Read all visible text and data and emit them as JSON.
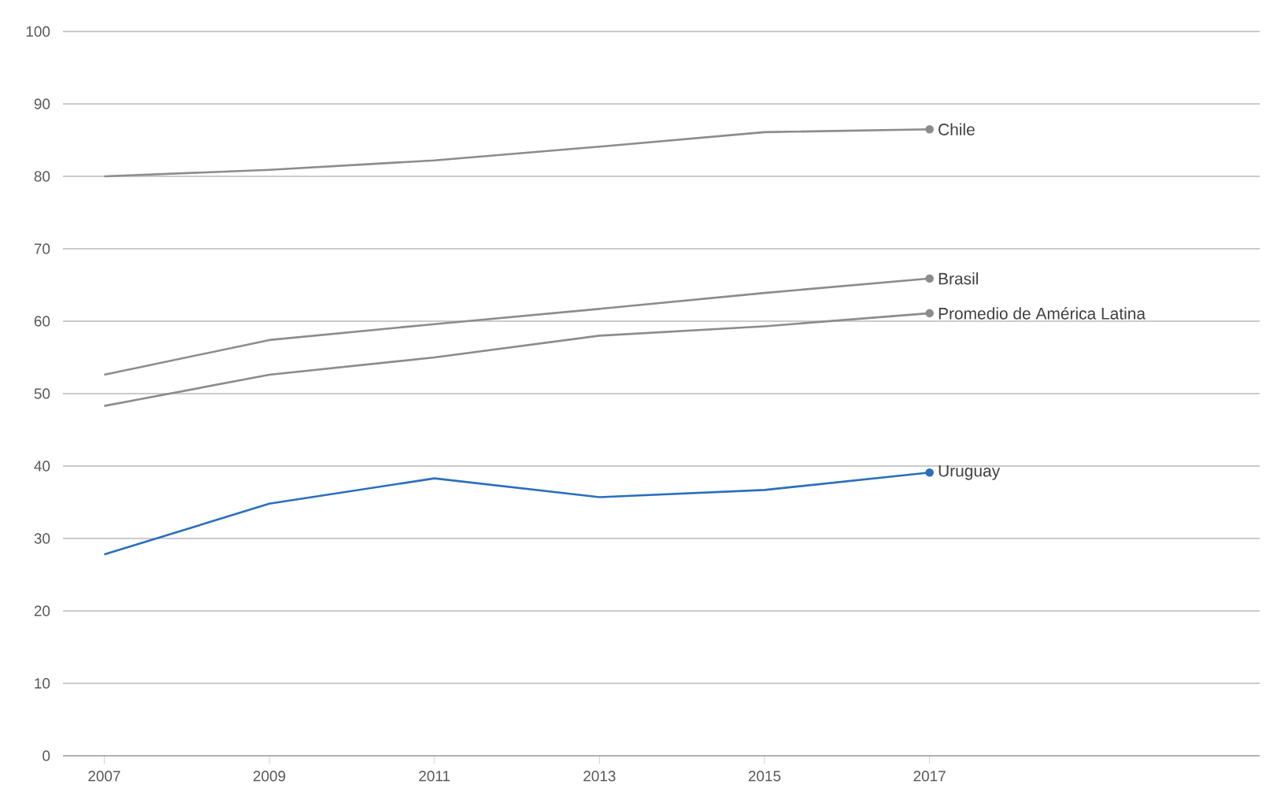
{
  "chart_data": {
    "type": "line",
    "x": [
      2007,
      2009,
      2011,
      2013,
      2015,
      2017
    ],
    "series": [
      {
        "name": "Chile",
        "color": "#8c8c8c",
        "values": [
          80.0,
          80.9,
          82.2,
          84.1,
          86.1,
          86.5
        ]
      },
      {
        "name": "Brasil",
        "color": "#8c8c8c",
        "values": [
          52.6,
          57.4,
          59.6,
          61.7,
          63.9,
          65.9
        ]
      },
      {
        "name": "Promedio de América Latina",
        "color": "#8c8c8c",
        "values": [
          48.3,
          52.6,
          55.0,
          58.0,
          59.3,
          61.1
        ]
      },
      {
        "name": "Uruguay",
        "color": "#2a6fbd",
        "values": [
          27.8,
          34.8,
          38.3,
          35.7,
          36.7,
          39.1
        ]
      }
    ],
    "xlim": [
      2006.5,
      2021
    ],
    "xticks": [
      2007,
      2009,
      2011,
      2013,
      2015,
      2017
    ],
    "ylim": [
      0,
      100
    ],
    "yticks": [
      0,
      10,
      20,
      30,
      40,
      50,
      60,
      70,
      80,
      90,
      100
    ],
    "grid": "y",
    "line_style": "solid"
  }
}
